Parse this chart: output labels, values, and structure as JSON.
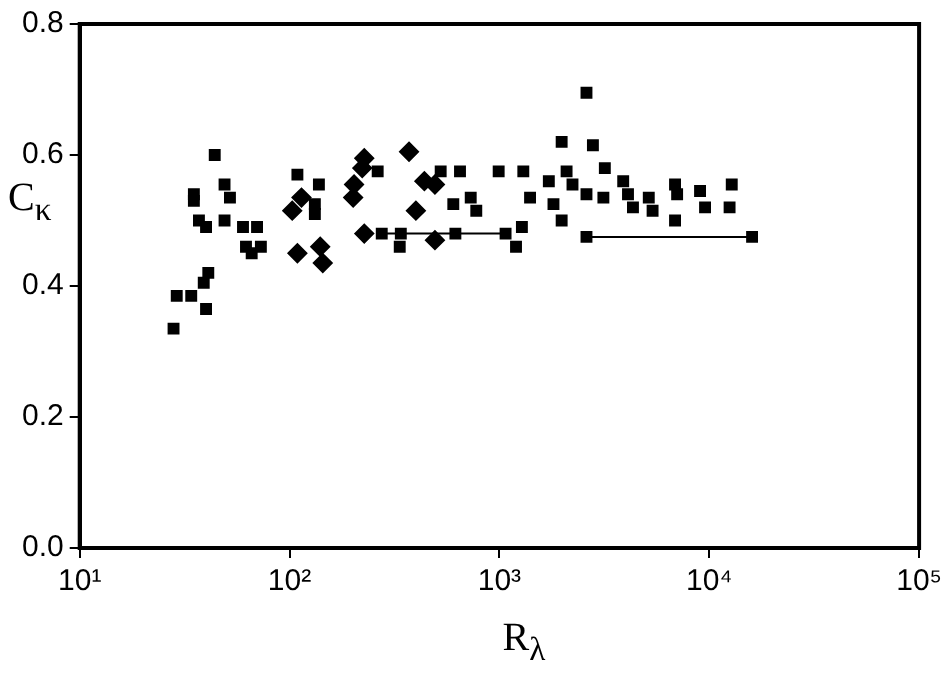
{
  "chart_data": {
    "type": "scatter",
    "xlabel": "R$_{λ}$",
    "ylabel": "C$_{κ}$",
    "log": "x",
    "grid": false,
    "legend": false,
    "xlim": [
      10,
      100000
    ],
    "xticks": [
      {
        "value": 10,
        "label": "10¹"
      },
      {
        "value": 100,
        "label": "10²"
      },
      {
        "value": 1000,
        "label": "10³"
      },
      {
        "value": 10000,
        "label": "10⁴"
      },
      {
        "value": 100000,
        "label": "10⁵"
      }
    ],
    "ylim": [
      0,
      0.8
    ],
    "yticks": [
      {
        "value": 0,
        "label": "0.0"
      },
      {
        "value": 0.2,
        "label": "0.2"
      },
      {
        "value": 0.4,
        "label": "0.4"
      },
      {
        "value": 0.6,
        "label": "0.6"
      },
      {
        "value": 0.8,
        "label": "0.8"
      }
    ],
    "series": [
      {
        "marker": "square",
        "color": "#000000",
        "x": [
          44,
          35,
          35,
          49,
          52,
          37,
          40,
          49,
          60,
          70,
          62,
          66,
          73,
          41,
          39,
          29,
          34,
          40,
          28,
          109,
          138,
          132,
          132,
          263,
          525,
          649,
          603,
          730,
          776,
          275,
          335,
          1980
        ],
        "values": [
          0.6,
          0.54,
          0.53,
          0.555,
          0.535,
          0.5,
          0.49,
          0.5,
          0.49,
          0.49,
          0.46,
          0.45,
          0.46,
          0.42,
          0.405,
          0.385,
          0.385,
          0.365,
          0.335,
          0.57,
          0.555,
          0.525,
          0.51,
          0.575,
          0.575,
          0.575,
          0.525,
          0.535,
          0.515,
          0.48,
          0.46,
          0.62
        ]
      },
      {
        "marker": "diamond",
        "color": "#000000",
        "x": [
          103,
          114,
          109,
          140,
          144,
          227,
          222,
          203,
          201,
          227,
          371,
          400,
          439,
          493,
          493
        ],
        "values": [
          0.515,
          0.535,
          0.45,
          0.46,
          0.435,
          0.595,
          0.58,
          0.555,
          0.535,
          0.48,
          0.605,
          0.515,
          0.56,
          0.555,
          0.47
        ]
      },
      {
        "marker": "square",
        "color": "#000000",
        "x": [
          339,
          617,
          2600,
          2790,
          3180,
          992,
          1300,
          1720,
          2090,
          2230,
          2600,
          3130,
          3890,
          4100,
          4330,
          5150,
          5370,
          6870,
          7030,
          6870,
          9040,
          9550,
          12800,
          12500,
          1400,
          1810,
          1980,
          1280,
          1070,
          1200,
          2600,
          16000
        ],
        "values": [
          0.48,
          0.48,
          0.695,
          0.615,
          0.58,
          0.575,
          0.575,
          0.56,
          0.575,
          0.555,
          0.54,
          0.535,
          0.56,
          0.54,
          0.52,
          0.535,
          0.515,
          0.555,
          0.54,
          0.5,
          0.545,
          0.52,
          0.555,
          0.52,
          0.535,
          0.525,
          0.5,
          0.49,
          0.48,
          0.46,
          0.475,
          0.475
        ]
      },
      {
        "type": "line",
        "marker": "none",
        "color": "#000000",
        "x": [
          275,
          339,
          617,
          1070
        ],
        "values": [
          0.48,
          0.48,
          0.48,
          0.48
        ]
      },
      {
        "type": "line",
        "marker": "none",
        "color": "#000000",
        "x": [
          2600,
          16000
        ],
        "values": [
          0.475,
          0.475
        ]
      }
    ]
  }
}
